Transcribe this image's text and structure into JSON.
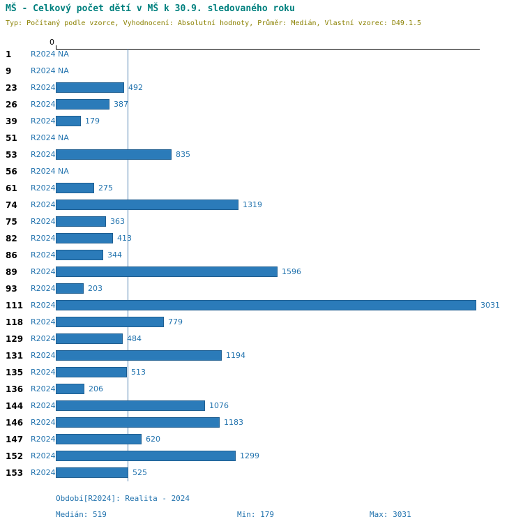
{
  "header": {
    "title": "MŠ - Celkový počet dětí v MŠ k 30.9. sledovaného roku",
    "subtitle": "Typ: Počítaný podle vzorce, Vyhodnocení: Absolutní hodnoty, Průměr: Medián, Vlastní vzorec: D49.1.5"
  },
  "chart_data": {
    "type": "bar",
    "orientation": "horizontal",
    "series_label": "R2024",
    "na_label": "NA",
    "axis_top_tick": "0",
    "categories": [
      "1",
      "9",
      "23",
      "26",
      "39",
      "51",
      "53",
      "56",
      "61",
      "74",
      "75",
      "82",
      "86",
      "89",
      "93",
      "111",
      "118",
      "129",
      "131",
      "135",
      "136",
      "144",
      "146",
      "147",
      "152",
      "153"
    ],
    "values": [
      null,
      null,
      492,
      387,
      179,
      null,
      835,
      null,
      275,
      1319,
      363,
      413,
      344,
      1596,
      203,
      3031,
      779,
      484,
      1194,
      513,
      206,
      1076,
      1183,
      620,
      1299,
      525
    ],
    "xlim": [
      0,
      3031
    ],
    "median_line": 519,
    "grid": false,
    "legend": "none",
    "bar_color": "#2b7bb9",
    "value_label_color": "#2273ae",
    "median_line_color": "#4c7fb0"
  },
  "footer": {
    "period": "Období[R2024]: Realita - 2024",
    "median": "Medián: 519",
    "min": "Min: 179",
    "max": "Max: 3031"
  }
}
